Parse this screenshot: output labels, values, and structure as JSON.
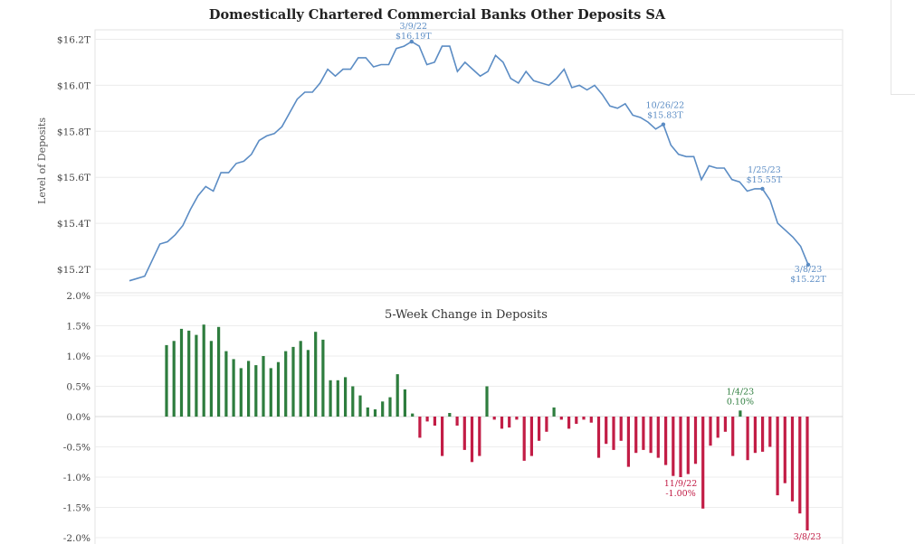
{
  "chart_data": [
    {
      "type": "line",
      "title": "Domestically Chartered Commercial Banks Other Deposits SA",
      "ylabel": "Level of Deposits",
      "ylim": [
        15.1,
        16.2
      ],
      "yticks": [
        "$15.2T",
        "$15.4T",
        "$15.6T",
        "$15.8T",
        "$16.0T",
        "$16.2T"
      ],
      "ytick_values": [
        15.2,
        15.4,
        15.6,
        15.8,
        16.0,
        16.2
      ],
      "color": "#5b8cc4",
      "grid": true,
      "values": [
        15.15,
        15.16,
        15.17,
        15.24,
        15.31,
        15.32,
        15.35,
        15.39,
        15.46,
        15.52,
        15.56,
        15.54,
        15.62,
        15.62,
        15.66,
        15.67,
        15.7,
        15.76,
        15.78,
        15.79,
        15.82,
        15.88,
        15.94,
        15.97,
        15.97,
        16.01,
        16.07,
        16.04,
        16.07,
        16.07,
        16.12,
        16.12,
        16.08,
        16.09,
        16.09,
        16.16,
        16.17,
        16.19,
        16.17,
        16.09,
        16.1,
        16.17,
        16.17,
        16.06,
        16.1,
        16.07,
        16.04,
        16.06,
        16.13,
        16.1,
        16.03,
        16.01,
        16.06,
        16.02,
        16.01,
        16.0,
        16.03,
        16.07,
        15.99,
        16.0,
        15.98,
        16.0,
        15.96,
        15.91,
        15.9,
        15.92,
        15.87,
        15.86,
        15.84,
        15.81,
        15.83,
        15.74,
        15.7,
        15.69,
        15.69,
        15.59,
        15.65,
        15.64,
        15.64,
        15.59,
        15.58,
        15.54,
        15.55,
        15.55,
        15.5,
        15.4,
        15.37,
        15.34,
        15.3,
        15.22
      ],
      "annotations": [
        {
          "index": 37,
          "date": "3/9/22",
          "value": "$16.19T"
        },
        {
          "index": 70,
          "date": "10/26/22",
          "value": "$15.83T"
        },
        {
          "index": 83,
          "date": "1/25/23",
          "value": "$15.55T"
        },
        {
          "index": 89,
          "date": "3/8/23",
          "value": "$15.22T"
        }
      ]
    },
    {
      "type": "bar",
      "title": "5-Week Change in Deposits",
      "ylim": [
        -2.0,
        2.0
      ],
      "yticks": [
        "2.0%",
        "1.5%",
        "1.0%",
        "0.5%",
        "0.0%",
        "-0.5%",
        "-1.0%",
        "-1.5%",
        "-2.0%"
      ],
      "ytick_values": [
        2.0,
        1.5,
        1.0,
        0.5,
        0.0,
        -0.5,
        -1.0,
        -1.5,
        -2.0
      ],
      "positive_color": "#2e7d3e",
      "negative_color": "#c21d46",
      "values": [
        1.18,
        1.25,
        1.45,
        1.42,
        1.35,
        1.52,
        1.25,
        1.48,
        1.08,
        0.95,
        0.8,
        0.92,
        0.85,
        1.0,
        0.8,
        0.9,
        1.08,
        1.15,
        1.25,
        1.1,
        1.4,
        1.27,
        0.6,
        0.6,
        0.65,
        0.5,
        0.35,
        0.15,
        0.12,
        0.25,
        0.32,
        0.7,
        0.45,
        0.05,
        -0.35,
        -0.08,
        -0.15,
        -0.65,
        0.06,
        -0.15,
        -0.55,
        -0.75,
        -0.65,
        0.5,
        -0.05,
        -0.2,
        -0.18,
        -0.05,
        -0.73,
        -0.65,
        -0.4,
        -0.25,
        0.15,
        -0.05,
        -0.2,
        -0.12,
        -0.05,
        -0.1,
        -0.68,
        -0.45,
        -0.55,
        -0.4,
        -0.83,
        -0.6,
        -0.55,
        -0.6,
        -0.68,
        -0.8,
        -0.98,
        -1.0,
        -0.95,
        -0.78,
        -1.52,
        -0.48,
        -0.35,
        -0.25,
        -0.65,
        0.1,
        -0.72,
        -0.6,
        -0.58,
        -0.5,
        -1.3,
        -1.1,
        -1.4,
        -1.6,
        -1.88
      ],
      "annotations": [
        {
          "index": 69,
          "date": "11/9/22",
          "value": "-1.00%"
        },
        {
          "index": 77,
          "date": "1/4/23",
          "value": "0.10%"
        },
        {
          "index": 86,
          "date": "3/8/23",
          "value": ""
        }
      ]
    }
  ]
}
